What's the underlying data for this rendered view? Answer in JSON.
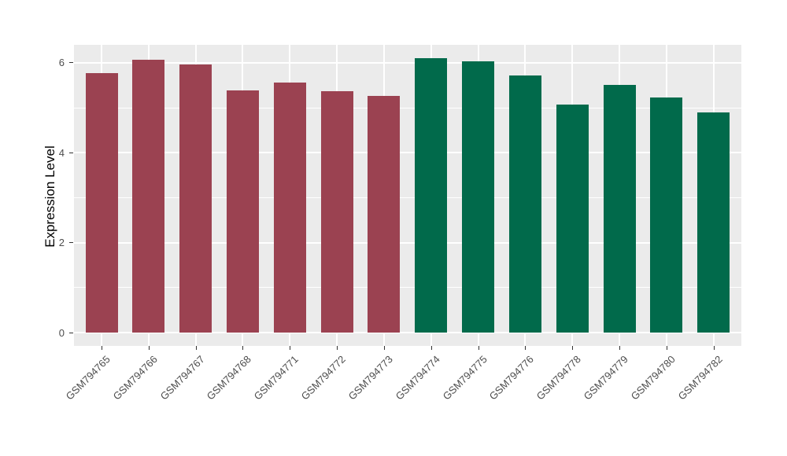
{
  "figure": {
    "background": "#FFFFFF",
    "panel_background": "#EBEBEB",
    "gridline_color": "#FFFFFF"
  },
  "chart_data": {
    "type": "bar",
    "title": "",
    "xlabel": "",
    "ylabel": "Expression Level",
    "ylim": [
      0,
      6.45
    ],
    "yticks": [
      0,
      2,
      4,
      6
    ],
    "ytick_labels": [
      "0",
      "2",
      "4",
      "6"
    ],
    "yminor": [
      1,
      3,
      5
    ],
    "grid": "on",
    "legend_position": "none",
    "categories": [
      "GSM794765",
      "GSM794766",
      "GSM794767",
      "GSM794768",
      "GSM794771",
      "GSM794772",
      "GSM794773",
      "GSM794774",
      "GSM794775",
      "GSM794776",
      "GSM794778",
      "GSM794779",
      "GSM794780",
      "GSM794782"
    ],
    "values": [
      5.78,
      6.07,
      5.96,
      5.39,
      5.57,
      5.37,
      5.27,
      6.11,
      6.04,
      5.72,
      5.08,
      5.51,
      5.23,
      4.89
    ],
    "groups": [
      "group1",
      "group1",
      "group1",
      "group1",
      "group1",
      "group1",
      "group1",
      "group2",
      "group2",
      "group2",
      "group2",
      "group2",
      "group2",
      "group2"
    ],
    "group_colors": {
      "group1": "#9B4251",
      "group2": "#016A4B"
    }
  }
}
